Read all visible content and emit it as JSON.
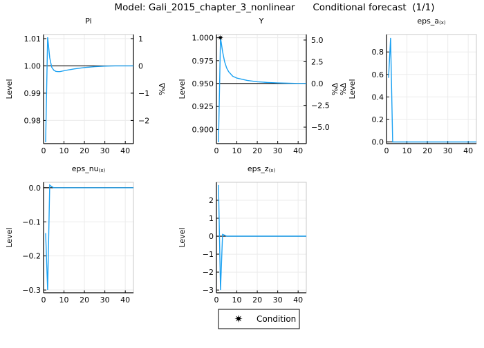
{
  "title": "Model: Gali_2015_chapter_3_nonlinear      Conditional forecast  (1/1)",
  "legend": {
    "marker": "star",
    "label": "Condition",
    "position": "bottom-center"
  },
  "colors": {
    "series": "#1ba1f2",
    "steady_state": "#000000",
    "grid": "#ebebeb"
  },
  "chart_data": [
    {
      "type": "line",
      "title": "Pi",
      "subscript": "",
      "ylabel": "Level",
      "ylabel2": "%Δ",
      "xlim": [
        0,
        44
      ],
      "ylim": [
        0.9715,
        1.0115
      ],
      "xticks": [
        0,
        10,
        20,
        30,
        40
      ],
      "yticks": [
        {
          "v": 1.01,
          "t": "1.01"
        },
        {
          "v": 1.0,
          "t": "1.00"
        },
        {
          "v": 0.99,
          "t": "0.99"
        },
        {
          "v": 0.98,
          "t": "0.98"
        }
      ],
      "y2ticks": [
        {
          "v": 1.01,
          "t": "1"
        },
        {
          "v": 1.0,
          "t": "0"
        },
        {
          "v": 0.99,
          "t": "−1"
        },
        {
          "v": 0.98,
          "t": "−2"
        }
      ],
      "steady_state": 1.0,
      "x": [
        1,
        2,
        3,
        4,
        5,
        6,
        7,
        8,
        10,
        12,
        15,
        20,
        25,
        30,
        35,
        40,
        44
      ],
      "y": [
        0.972,
        1.0105,
        1.003,
        0.9995,
        0.9984,
        0.998,
        0.9979,
        0.9979,
        0.9982,
        0.9985,
        0.9989,
        0.9994,
        0.9997,
        0.9999,
        1.0,
        1.0,
        1.0
      ],
      "conditions": []
    },
    {
      "type": "line",
      "title": "Y",
      "subscript": "",
      "ylabel": "Level",
      "ylabel2": "%Δ",
      "xlim": [
        0,
        44
      ],
      "ylim": [
        0.8845,
        1.0035
      ],
      "xticks": [
        0,
        10,
        20,
        30,
        40
      ],
      "yticks": [
        {
          "v": 1.0,
          "t": "1.000"
        },
        {
          "v": 0.975,
          "t": "0.975"
        },
        {
          "v": 0.95,
          "t": "0.950"
        },
        {
          "v": 0.925,
          "t": "0.925"
        },
        {
          "v": 0.9,
          "t": "0.900"
        }
      ],
      "y2ticks": [
        {
          "v": 0.9975,
          "t": "5.0"
        },
        {
          "v": 0.97375,
          "t": "2.5"
        },
        {
          "v": 0.95,
          "t": "0.0"
        },
        {
          "v": 0.92625,
          "t": "−2.5"
        },
        {
          "v": 0.9025,
          "t": "−5.0"
        }
      ],
      "steady_state": 0.95,
      "x": [
        1,
        2,
        3,
        4,
        5,
        6,
        8,
        10,
        12,
        15,
        20,
        25,
        30,
        35,
        40,
        44
      ],
      "y": [
        0.886,
        1.0,
        0.985,
        0.974,
        0.967,
        0.963,
        0.958,
        0.956,
        0.955,
        0.9535,
        0.952,
        0.9512,
        0.9507,
        0.9504,
        0.9502,
        0.9501
      ],
      "conditions": [
        {
          "x": 2,
          "y": 1.0
        }
      ]
    },
    {
      "type": "line",
      "title": "eps_a",
      "subscript": "(x)",
      "ylabel": "Level",
      "ylabel2": "%Δ",
      "xlim": [
        0,
        44
      ],
      "ylim": [
        -0.015,
        0.955
      ],
      "xticks": [
        0,
        10,
        20,
        30,
        40
      ],
      "yticks": [
        {
          "v": 0.8,
          "t": "0.8"
        },
        {
          "v": 0.6,
          "t": "0.6"
        },
        {
          "v": 0.4,
          "t": "0.4"
        },
        {
          "v": 0.2,
          "t": "0.2"
        },
        {
          "v": 0.0,
          "t": "0.0"
        }
      ],
      "y2ticks": [],
      "steady_state": 0,
      "x": [
        1,
        2,
        3,
        4,
        44
      ],
      "y": [
        0.57,
        0.925,
        0.0,
        0.0,
        0.0
      ],
      "conditions": []
    },
    {
      "type": "line",
      "title": "eps_nu",
      "subscript": "(x)",
      "ylabel": "Level",
      "ylabel2": "",
      "xlim": [
        0,
        44
      ],
      "ylim": [
        -0.308,
        0.016
      ],
      "xticks": [
        0,
        10,
        20,
        30,
        40
      ],
      "yticks": [
        {
          "v": 0.0,
          "t": "0.0"
        },
        {
          "v": -0.1,
          "t": "−0.1"
        },
        {
          "v": -0.2,
          "t": "−0.2"
        },
        {
          "v": -0.3,
          "t": "−0.3"
        }
      ],
      "y2ticks": [],
      "steady_state": 0,
      "x": [
        1,
        2,
        3,
        4,
        5,
        44
      ],
      "y": [
        -0.133,
        -0.3,
        0.008,
        0.003,
        0.0,
        0.0
      ],
      "conditions": []
    },
    {
      "type": "line",
      "title": "eps_z",
      "subscript": "(x)",
      "ylabel": "Level",
      "ylabel2": "",
      "xlim": [
        0,
        44
      ],
      "ylim": [
        -3.15,
        3.0
      ],
      "xticks": [
        0,
        10,
        20,
        30,
        40
      ],
      "yticks": [
        {
          "v": 2,
          "t": "2"
        },
        {
          "v": 1,
          "t": "1"
        },
        {
          "v": 0,
          "t": "0"
        },
        {
          "v": -1,
          "t": "−1"
        },
        {
          "v": -2,
          "t": "−2"
        },
        {
          "v": -3,
          "t": "−3"
        }
      ],
      "y2ticks": [],
      "steady_state": 0,
      "x": [
        1,
        2,
        3,
        4,
        5,
        44
      ],
      "y": [
        2.85,
        -3.0,
        0.1,
        0.05,
        0.0,
        0.0
      ],
      "conditions": []
    }
  ]
}
